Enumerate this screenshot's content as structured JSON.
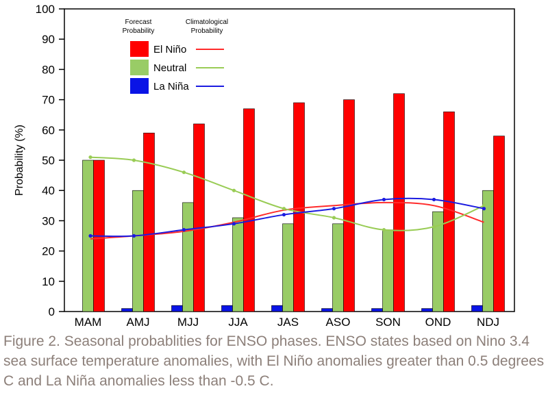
{
  "chart_data": {
    "type": "bar",
    "title": "",
    "xlabel": "",
    "ylabel": "Probability (%)",
    "ylim": [
      0,
      100
    ],
    "yticks": [
      "0",
      "10",
      "20",
      "30",
      "40",
      "50",
      "60",
      "70",
      "80",
      "90",
      "100"
    ],
    "categories": [
      "MAM",
      "AMJ",
      "MJJ",
      "JJA",
      "JAS",
      "ASO",
      "SON",
      "OND",
      "NDJ"
    ],
    "series": [
      {
        "name": "La Niña",
        "color": "#0a14e6",
        "values": [
          0,
          1,
          2,
          2,
          2,
          1,
          1,
          1,
          2
        ]
      },
      {
        "name": "Neutral",
        "color": "#99cc66",
        "values": [
          50,
          40,
          36,
          31,
          29,
          29,
          27,
          33,
          40
        ]
      },
      {
        "name": "El Niño",
        "color": "#ff0000",
        "values": [
          50,
          59,
          62,
          67,
          69,
          70,
          72,
          66,
          58
        ]
      }
    ],
    "climatology": [
      {
        "name": "El Niño",
        "color": "#ff2a2a",
        "values": [
          24,
          25,
          26.5,
          29.5,
          33.5,
          35,
          36,
          35,
          29.5
        ],
        "markers": false
      },
      {
        "name": "Neutral",
        "color": "#99cc55",
        "values": [
          51,
          50,
          46,
          40,
          34,
          31,
          27,
          28,
          35
        ],
        "markers": true
      },
      {
        "name": "La Niña",
        "color": "#1a1ae0",
        "values": [
          25,
          25,
          27,
          29,
          32,
          34,
          37,
          37,
          34
        ],
        "markers": true
      }
    ],
    "legend": {
      "header_forecast": [
        "Forecast",
        "Probability"
      ],
      "header_climo": [
        "Climatological",
        "Probability"
      ],
      "entries": [
        "El Niño",
        "Neutral",
        "La Niña"
      ],
      "placement": "top-left"
    }
  },
  "caption": "Figure 2. Seasonal probablities for ENSO phases. ENSO states based on Nino 3.4 sea surface temperature anomalies, with El Niño anomalies greater than 0.5 degrees C and La Niña anomalies less than -0.5 C."
}
